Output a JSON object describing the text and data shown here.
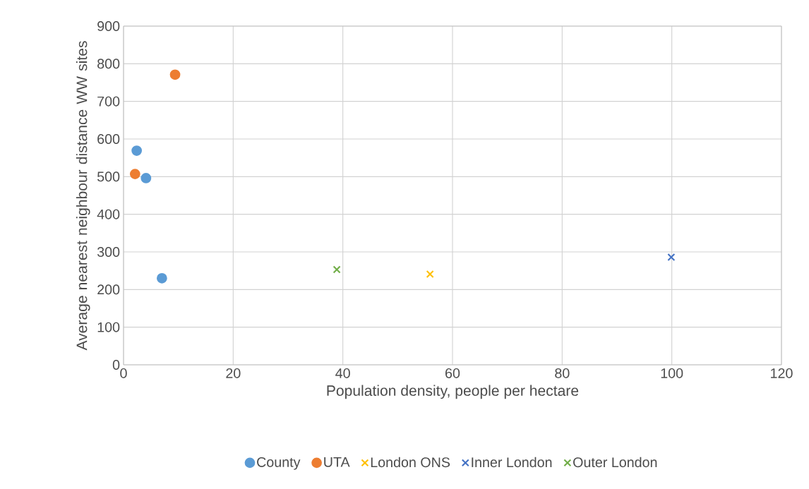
{
  "chart_data": {
    "type": "scatter",
    "xlabel": "Population density, people per hectare",
    "ylabel": "Average nearest neighbour distance WW sites",
    "xlim": [
      0,
      120
    ],
    "xticks": [
      0,
      20,
      40,
      60,
      80,
      100,
      120
    ],
    "ylim": [
      0,
      900
    ],
    "yticks": [
      0,
      100,
      200,
      300,
      400,
      500,
      600,
      700,
      800,
      900
    ],
    "grid": true,
    "legend": "bottom",
    "series": [
      {
        "name": "County",
        "color": "#5b9bd5",
        "marker": "circle",
        "x": [
          2.4,
          4.1,
          7.0
        ],
        "values": [
          569,
          496,
          230
        ]
      },
      {
        "name": "UTA",
        "color": "#ed7d31",
        "marker": "circle",
        "x": [
          2.1,
          9.4
        ],
        "values": [
          507,
          771
        ]
      },
      {
        "name": "London ONS",
        "color": "#ffc000",
        "marker": "cross",
        "x": [
          55.9
        ],
        "values": [
          241
        ]
      },
      {
        "name": "Inner London",
        "color": "#4472c4",
        "marker": "cross",
        "x": [
          99.9
        ],
        "values": [
          286
        ]
      },
      {
        "name": "Outer London",
        "color": "#70ad47",
        "marker": "cross",
        "x": [
          38.9
        ],
        "values": [
          253
        ]
      }
    ]
  }
}
